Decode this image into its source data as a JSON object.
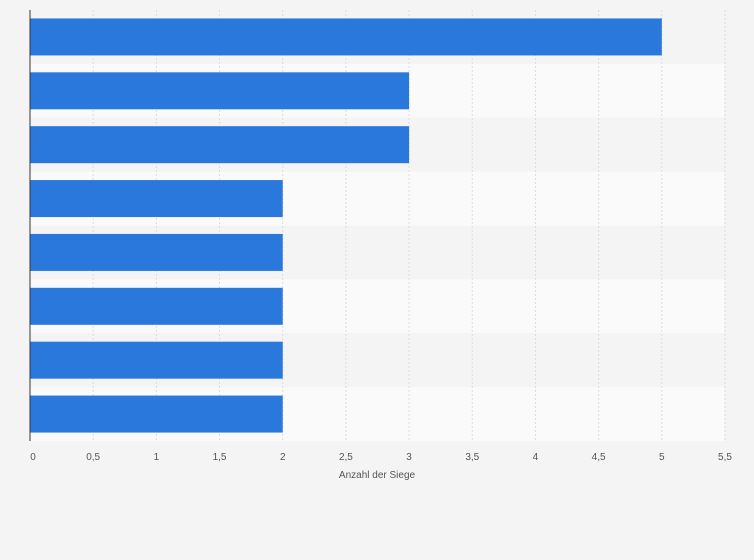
{
  "chart_data": {
    "type": "bar",
    "orientation": "horizontal",
    "categories": [
      "",
      "",
      "",
      "",
      "",
      "",
      "",
      ""
    ],
    "values": [
      5,
      3,
      3,
      2,
      2,
      2,
      2,
      2
    ],
    "xlabel": "Anzahl der Siege",
    "ylabel": "",
    "xlim": [
      0,
      5.5
    ],
    "x_ticks": [
      "0",
      "0,5",
      "1",
      "1,5",
      "2",
      "2,5",
      "3",
      "3,5",
      "4",
      "4,5",
      "5",
      "5,5"
    ],
    "grid": "vertical",
    "bar_color": "#2a78dc",
    "band_colors": [
      "#f4f4f4",
      "#fafafa"
    ]
  }
}
